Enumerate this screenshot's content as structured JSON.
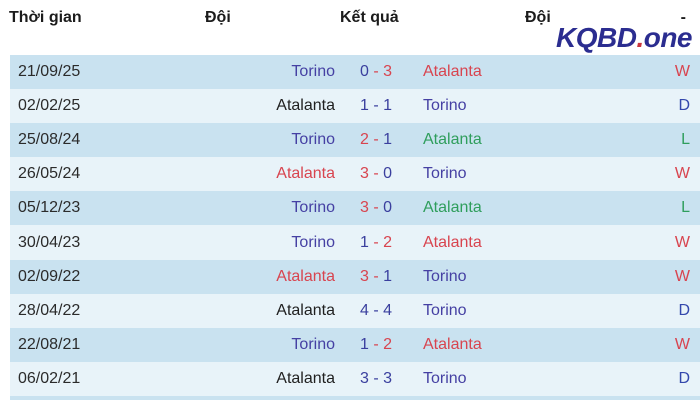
{
  "header": {
    "time_label": "Thời gian",
    "team1_label": "Đội",
    "result_label": "Kết quả",
    "team2_label": "Đội",
    "outcome_label": "-"
  },
  "logo": {
    "main": "KQBD",
    "dot": ".",
    "suffix": "one"
  },
  "score_separator": "-",
  "colors": {
    "row_dark": "#c9e2f0",
    "row_light": "#e8f3f9",
    "navy": "#4540a3",
    "score_navy": "#3a3f9e",
    "red": "#d8444f",
    "green": "#2f9e5c",
    "black": "#1f1f1f",
    "draw_blue": "#3347ac",
    "date_text": "#2b2b2b",
    "logo_navy": "#2b2d90",
    "logo_red": "#c8363e"
  },
  "chart_data": {
    "type": "table",
    "title": "Head-to-head results Torino vs Atalanta",
    "columns": [
      "Thời gian",
      "Đội",
      "Kết quả",
      "Đội",
      "-"
    ]
  },
  "rows": [
    {
      "date": "21/09/25",
      "home": "Torino",
      "home_color": "navy",
      "score_home": "0",
      "score_home_color": "snavy",
      "score_away": "3",
      "score_away_color": "red",
      "dash_color": "red",
      "away": "Atalanta",
      "away_color": "red",
      "outcome": "W",
      "outcome_color": "red"
    },
    {
      "date": "02/02/25",
      "home": "Atalanta",
      "home_color": "black",
      "score_home": "1",
      "score_home_color": "snavy",
      "score_away": "1",
      "score_away_color": "snavy",
      "dash_color": "snavy",
      "away": "Torino",
      "away_color": "navy",
      "outcome": "D",
      "outcome_color": "dblue"
    },
    {
      "date": "25/08/24",
      "home": "Torino",
      "home_color": "navy",
      "score_home": "2",
      "score_home_color": "red",
      "score_away": "1",
      "score_away_color": "snavy",
      "dash_color": "red",
      "away": "Atalanta",
      "away_color": "green",
      "outcome": "L",
      "outcome_color": "green"
    },
    {
      "date": "26/05/24",
      "home": "Atalanta",
      "home_color": "red",
      "score_home": "3",
      "score_home_color": "red",
      "score_away": "0",
      "score_away_color": "snavy",
      "dash_color": "red",
      "away": "Torino",
      "away_color": "navy",
      "outcome": "W",
      "outcome_color": "red"
    },
    {
      "date": "05/12/23",
      "home": "Torino",
      "home_color": "navy",
      "score_home": "3",
      "score_home_color": "red",
      "score_away": "0",
      "score_away_color": "snavy",
      "dash_color": "red",
      "away": "Atalanta",
      "away_color": "green",
      "outcome": "L",
      "outcome_color": "green"
    },
    {
      "date": "30/04/23",
      "home": "Torino",
      "home_color": "navy",
      "score_home": "1",
      "score_home_color": "snavy",
      "score_away": "2",
      "score_away_color": "red",
      "dash_color": "red",
      "away": "Atalanta",
      "away_color": "red",
      "outcome": "W",
      "outcome_color": "red"
    },
    {
      "date": "02/09/22",
      "home": "Atalanta",
      "home_color": "red",
      "score_home": "3",
      "score_home_color": "red",
      "score_away": "1",
      "score_away_color": "snavy",
      "dash_color": "red",
      "away": "Torino",
      "away_color": "navy",
      "outcome": "W",
      "outcome_color": "red"
    },
    {
      "date": "28/04/22",
      "home": "Atalanta",
      "home_color": "black",
      "score_home": "4",
      "score_home_color": "snavy",
      "score_away": "4",
      "score_away_color": "snavy",
      "dash_color": "snavy",
      "away": "Torino",
      "away_color": "navy",
      "outcome": "D",
      "outcome_color": "dblue"
    },
    {
      "date": "22/08/21",
      "home": "Torino",
      "home_color": "navy",
      "score_home": "1",
      "score_home_color": "snavy",
      "score_away": "2",
      "score_away_color": "red",
      "dash_color": "red",
      "away": "Atalanta",
      "away_color": "red",
      "outcome": "W",
      "outcome_color": "red"
    },
    {
      "date": "06/02/21",
      "home": "Atalanta",
      "home_color": "black",
      "score_home": "3",
      "score_home_color": "snavy",
      "score_away": "3",
      "score_away_color": "snavy",
      "dash_color": "snavy",
      "away": "Torino",
      "away_color": "navy",
      "outcome": "D",
      "outcome_color": "dblue"
    }
  ]
}
